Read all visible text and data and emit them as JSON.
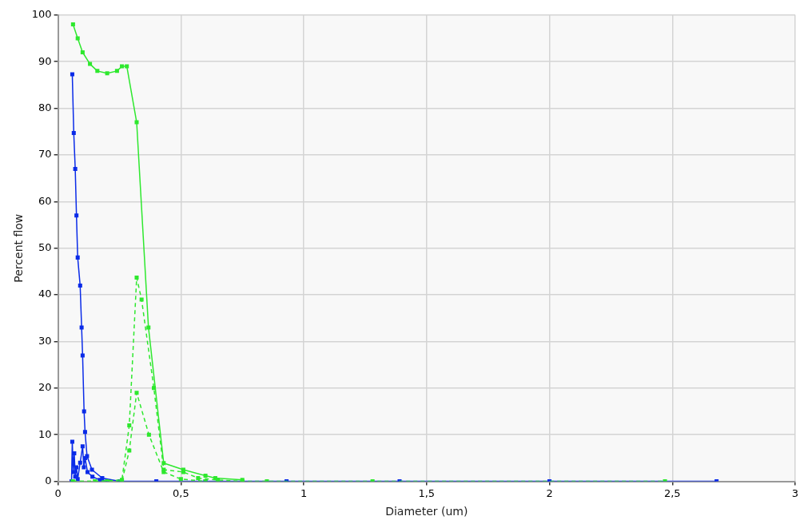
{
  "chart_data": {
    "type": "line",
    "xlabel": "Diameter (um)",
    "ylabel": "Percent flow",
    "xlim": [
      0,
      3
    ],
    "ylim": [
      0,
      100
    ],
    "xticks": [
      0,
      {
        "value": 0.5,
        "label": "0,5"
      },
      1,
      {
        "value": 1.5,
        "label": "1,5"
      },
      2,
      {
        "value": 2.5,
        "label": "2,5"
      },
      3
    ],
    "yticks": [
      0,
      10,
      20,
      30,
      40,
      50,
      60,
      70,
      80,
      90,
      100
    ],
    "grid": true,
    "marker": "square",
    "legend": false,
    "series": [
      {
        "color": "#2ee82e",
        "line_style": "solid",
        "x": [
          0.061,
          0.08,
          0.1,
          0.13,
          0.16,
          0.2,
          0.24,
          0.26,
          0.28,
          0.32,
          0.368,
          0.43,
          0.51,
          0.6,
          0.64,
          0.75
        ],
        "values": [
          98,
          95,
          92,
          89.5,
          88,
          87.5,
          88,
          89,
          89,
          77,
          33,
          3.9,
          2.5,
          1.2,
          0.7,
          0.3
        ]
      },
      {
        "color": "#2ee82e",
        "line_style": "dashed",
        "x": [
          0.06,
          0.15,
          0.26,
          0.29,
          0.32,
          0.34,
          0.39,
          0.43,
          0.51,
          0.57,
          0.65,
          0.75,
          0.85,
          1.28,
          2.47
        ],
        "values": [
          0,
          0,
          0.3,
          12,
          43.7,
          39,
          20,
          2.5,
          2,
          0.7,
          0.3,
          0,
          0,
          0,
          0
        ]
      },
      {
        "color": "#2ee82e",
        "line_style": "dashed",
        "x": [
          0.06,
          0.2,
          0.26,
          0.29,
          0.32,
          0.37,
          0.43,
          0.5,
          0.6
        ],
        "values": [
          0,
          0,
          0,
          6.6,
          19,
          10,
          2,
          0.5,
          0
        ]
      },
      {
        "color": "#0a2be8",
        "line_style": "solid",
        "x": [
          0.058,
          0.064,
          0.07,
          0.075,
          0.08,
          0.09,
          0.096,
          0.1,
          0.106,
          0.11,
          0.118,
          0.138,
          0.18,
          0.25,
          0.4,
          0.6,
          0.93,
          1.39,
          2.0,
          2.68
        ],
        "values": [
          87.3,
          74.7,
          67,
          57,
          48,
          42,
          33,
          27,
          15,
          10.6,
          5.4,
          2.5,
          0.7,
          0,
          0,
          0,
          0,
          0,
          0,
          0
        ]
      },
      {
        "color": "#0a2be8",
        "line_style": "solid",
        "x": [
          0.055,
          0.058,
          0.062,
          0.066,
          0.07,
          0.075,
          0.08,
          0.09,
          0.1,
          0.105,
          0.11,
          0.12,
          0.14,
          0.17,
          0.2
        ],
        "values": [
          0,
          8.5,
          2,
          6,
          1,
          3,
          0.5,
          4,
          7.5,
          3,
          5,
          2,
          1,
          0.3,
          0
        ]
      }
    ]
  }
}
